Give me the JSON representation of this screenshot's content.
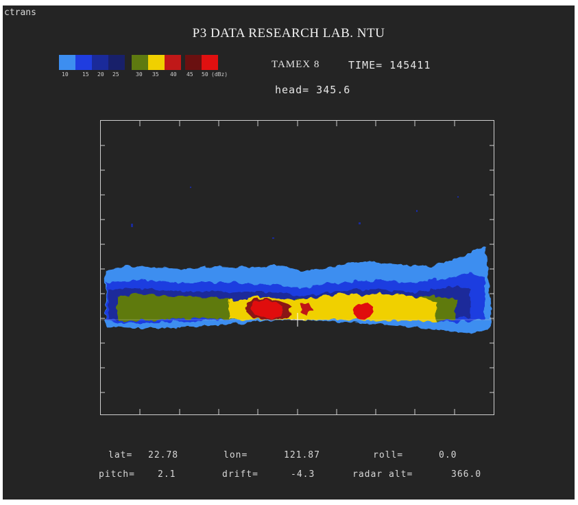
{
  "window": {
    "title": "ctrans"
  },
  "header": {
    "title": "P3 DATA RESEARCH LAB. NTU",
    "mission": "TAMEX 8",
    "time": "TIME= 145411",
    "heading": "head= 345.6"
  },
  "colorbar": {
    "labels": [
      "10",
      "15",
      "20",
      "25",
      "30",
      "35",
      "40",
      "45",
      "50"
    ],
    "unit": "(dBz)",
    "colors": [
      "#3d8ef0",
      "#1f3de0",
      "#1a2a9a",
      "#18206a",
      "#5e7a10",
      "#f0d000",
      "#c01818",
      "#6a1010",
      "#e01010"
    ]
  },
  "readouts": {
    "lat": {
      "label": "lat=",
      "value": "22.78"
    },
    "lon": {
      "label": "lon=",
      "value": "121.87"
    },
    "roll": {
      "label": "roll=",
      "value": "0.0"
    },
    "pitch": {
      "label": "pitch=",
      "value": "2.1"
    },
    "drift": {
      "label": "drift=",
      "value": "-4.3"
    },
    "radar_alt": {
      "label": "radar alt=",
      "value": "366.0"
    }
  }
}
